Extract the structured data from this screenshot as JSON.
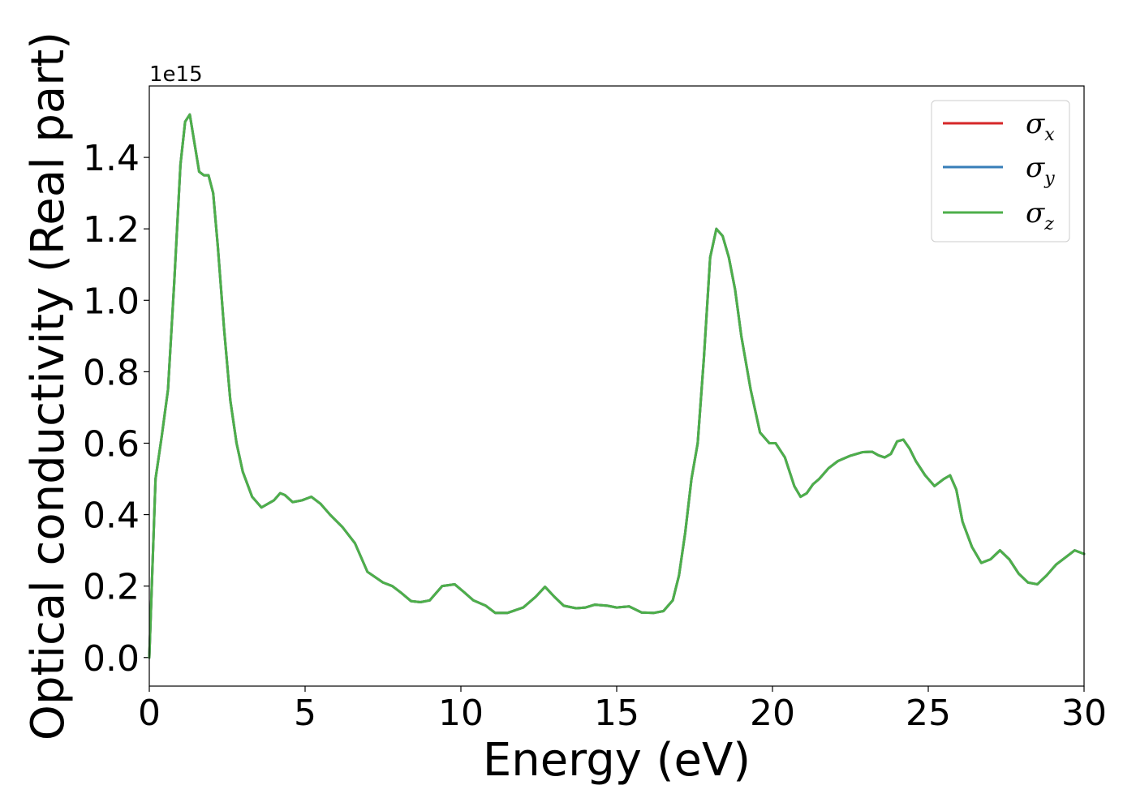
{
  "chart_data": {
    "type": "line",
    "title": "",
    "xlabel": "Energy (eV)",
    "ylabel": "Optical conductivity (Real part)",
    "y_offset_label": "1e15",
    "y_scale_factor": 1000000000000000.0,
    "xlim": [
      0,
      30
    ],
    "ylim": [
      -0.08,
      1.6
    ],
    "x_ticks": [
      0,
      5,
      10,
      15,
      20,
      25,
      30
    ],
    "x_tick_labels": [
      "0",
      "5",
      "10",
      "15",
      "20",
      "25",
      "30"
    ],
    "y_ticks": [
      0.0,
      0.2,
      0.4,
      0.6,
      0.8,
      1.0,
      1.2,
      1.4
    ],
    "y_tick_labels": [
      "0.0",
      "0.2",
      "0.4",
      "0.6",
      "0.8",
      "1.0",
      "1.2",
      "1.4"
    ],
    "grid": false,
    "legend_position": "top-right",
    "x": [
      0,
      0.2,
      0.4,
      0.6,
      0.8,
      1.0,
      1.15,
      1.3,
      1.45,
      1.6,
      1.75,
      1.9,
      2.05,
      2.2,
      2.4,
      2.6,
      2.8,
      3.0,
      3.3,
      3.6,
      3.8,
      4.0,
      4.2,
      4.35,
      4.6,
      4.9,
      5.2,
      5.5,
      5.8,
      6.2,
      6.6,
      7.0,
      7.5,
      7.8,
      8.1,
      8.4,
      8.7,
      9.0,
      9.4,
      9.8,
      10.1,
      10.4,
      10.8,
      11.1,
      11.5,
      12.0,
      12.4,
      12.7,
      13.0,
      13.3,
      13.7,
      14.0,
      14.3,
      14.7,
      15.0,
      15.4,
      15.8,
      16.2,
      16.5,
      16.8,
      17.0,
      17.2,
      17.4,
      17.6,
      17.8,
      18.0,
      18.2,
      18.4,
      18.6,
      18.8,
      19.0,
      19.3,
      19.6,
      19.9,
      20.1,
      20.4,
      20.7,
      20.9,
      21.1,
      21.3,
      21.5,
      21.8,
      22.1,
      22.5,
      22.9,
      23.2,
      23.4,
      23.6,
      23.8,
      24.0,
      24.2,
      24.4,
      24.6,
      24.9,
      25.2,
      25.5,
      25.7,
      25.9,
      26.1,
      26.4,
      26.7,
      27.0,
      27.3,
      27.6,
      27.9,
      28.2,
      28.5,
      28.8,
      29.1,
      29.4,
      29.7,
      30.0
    ],
    "series": [
      {
        "name": "σx",
        "symbol": "σ",
        "subscript": "x",
        "color": "#d62728",
        "values": [
          0.0,
          0.5,
          0.62,
          0.75,
          1.05,
          1.38,
          1.5,
          1.52,
          1.44,
          1.36,
          1.35,
          1.35,
          1.3,
          1.15,
          0.92,
          0.72,
          0.6,
          0.52,
          0.45,
          0.42,
          0.43,
          0.44,
          0.46,
          0.455,
          0.435,
          0.44,
          0.45,
          0.43,
          0.4,
          0.365,
          0.32,
          0.24,
          0.21,
          0.2,
          0.18,
          0.158,
          0.155,
          0.16,
          0.2,
          0.205,
          0.183,
          0.16,
          0.145,
          0.125,
          0.125,
          0.14,
          0.17,
          0.198,
          0.17,
          0.145,
          0.138,
          0.14,
          0.148,
          0.145,
          0.14,
          0.143,
          0.126,
          0.125,
          0.13,
          0.16,
          0.23,
          0.35,
          0.5,
          0.6,
          0.84,
          1.12,
          1.2,
          1.18,
          1.12,
          1.03,
          0.9,
          0.75,
          0.63,
          0.6,
          0.6,
          0.56,
          0.48,
          0.45,
          0.46,
          0.485,
          0.5,
          0.53,
          0.55,
          0.565,
          0.575,
          0.576,
          0.566,
          0.56,
          0.57,
          0.605,
          0.61,
          0.585,
          0.55,
          0.51,
          0.48,
          0.5,
          0.51,
          0.47,
          0.38,
          0.31,
          0.265,
          0.275,
          0.3,
          0.275,
          0.235,
          0.21,
          0.205,
          0.23,
          0.26,
          0.28,
          0.3,
          0.29
        ]
      },
      {
        "name": "σy",
        "symbol": "σ",
        "subscript": "y",
        "color": "#377eb8",
        "values": [
          0.0,
          0.5,
          0.62,
          0.75,
          1.05,
          1.38,
          1.5,
          1.52,
          1.44,
          1.36,
          1.35,
          1.35,
          1.3,
          1.15,
          0.92,
          0.72,
          0.6,
          0.52,
          0.45,
          0.42,
          0.43,
          0.44,
          0.46,
          0.455,
          0.435,
          0.44,
          0.45,
          0.43,
          0.4,
          0.365,
          0.32,
          0.24,
          0.21,
          0.2,
          0.18,
          0.158,
          0.155,
          0.16,
          0.2,
          0.205,
          0.183,
          0.16,
          0.145,
          0.125,
          0.125,
          0.14,
          0.17,
          0.198,
          0.17,
          0.145,
          0.138,
          0.14,
          0.148,
          0.145,
          0.14,
          0.143,
          0.126,
          0.125,
          0.13,
          0.16,
          0.23,
          0.35,
          0.5,
          0.6,
          0.84,
          1.12,
          1.2,
          1.18,
          1.12,
          1.03,
          0.9,
          0.75,
          0.63,
          0.6,
          0.6,
          0.56,
          0.48,
          0.45,
          0.46,
          0.485,
          0.5,
          0.53,
          0.55,
          0.565,
          0.575,
          0.576,
          0.566,
          0.56,
          0.57,
          0.605,
          0.61,
          0.585,
          0.55,
          0.51,
          0.48,
          0.5,
          0.51,
          0.47,
          0.38,
          0.31,
          0.265,
          0.275,
          0.3,
          0.275,
          0.235,
          0.21,
          0.205,
          0.23,
          0.26,
          0.28,
          0.3,
          0.29
        ]
      },
      {
        "name": "σz",
        "symbol": "σ",
        "subscript": "z",
        "color": "#4daf4a",
        "values": [
          0.0,
          0.5,
          0.62,
          0.75,
          1.05,
          1.38,
          1.5,
          1.52,
          1.44,
          1.36,
          1.35,
          1.35,
          1.3,
          1.15,
          0.92,
          0.72,
          0.6,
          0.52,
          0.45,
          0.42,
          0.43,
          0.44,
          0.46,
          0.455,
          0.435,
          0.44,
          0.45,
          0.43,
          0.4,
          0.365,
          0.32,
          0.24,
          0.21,
          0.2,
          0.18,
          0.158,
          0.155,
          0.16,
          0.2,
          0.205,
          0.183,
          0.16,
          0.145,
          0.125,
          0.125,
          0.14,
          0.17,
          0.198,
          0.17,
          0.145,
          0.138,
          0.14,
          0.148,
          0.145,
          0.14,
          0.143,
          0.126,
          0.125,
          0.13,
          0.16,
          0.23,
          0.35,
          0.5,
          0.6,
          0.84,
          1.12,
          1.2,
          1.18,
          1.12,
          1.03,
          0.9,
          0.75,
          0.63,
          0.6,
          0.6,
          0.56,
          0.48,
          0.45,
          0.46,
          0.485,
          0.5,
          0.53,
          0.55,
          0.565,
          0.575,
          0.576,
          0.566,
          0.56,
          0.57,
          0.605,
          0.61,
          0.585,
          0.55,
          0.51,
          0.48,
          0.5,
          0.51,
          0.47,
          0.38,
          0.31,
          0.265,
          0.275,
          0.3,
          0.275,
          0.235,
          0.21,
          0.205,
          0.23,
          0.26,
          0.28,
          0.3,
          0.29
        ]
      }
    ]
  }
}
